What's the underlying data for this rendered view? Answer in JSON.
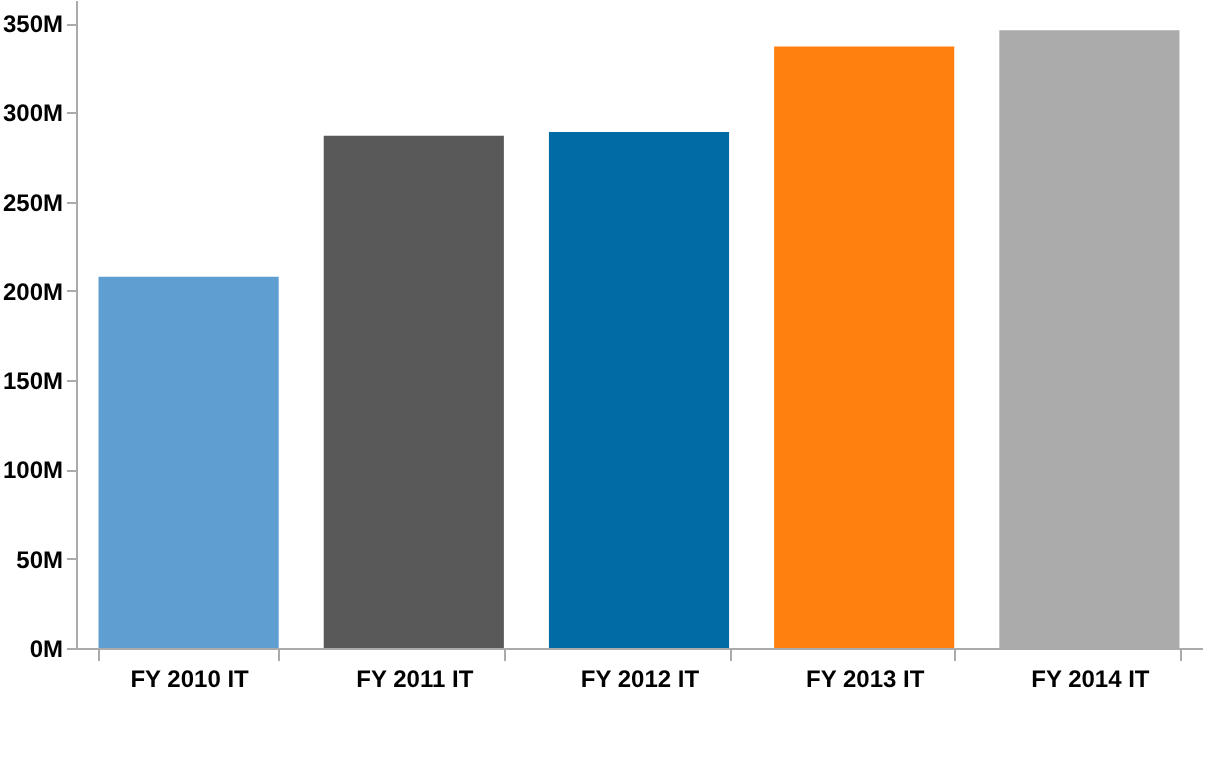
{
  "chart_data": {
    "type": "bar",
    "categories": [
      "FY 2010 IT",
      "FY 2011 IT",
      "FY 2012 IT",
      "FY 2013 IT",
      "FY 2014 IT"
    ],
    "values": [
      208,
      287,
      289,
      337,
      346
    ],
    "colors": [
      "#5f9ed1",
      "#595959",
      "#006ba4",
      "#ff800e",
      "#ababab"
    ],
    "ylim": [
      0,
      363
    ],
    "yticks": [
      {
        "value": 0,
        "label": "0M"
      },
      {
        "value": 50,
        "label": "50M"
      },
      {
        "value": 100,
        "label": "100M"
      },
      {
        "value": 150,
        "label": "150M"
      },
      {
        "value": 200,
        "label": "200M"
      },
      {
        "value": 250,
        "label": "250M"
      },
      {
        "value": 300,
        "label": "300M"
      },
      {
        "value": 350,
        "label": "350M"
      }
    ],
    "grid": false
  }
}
